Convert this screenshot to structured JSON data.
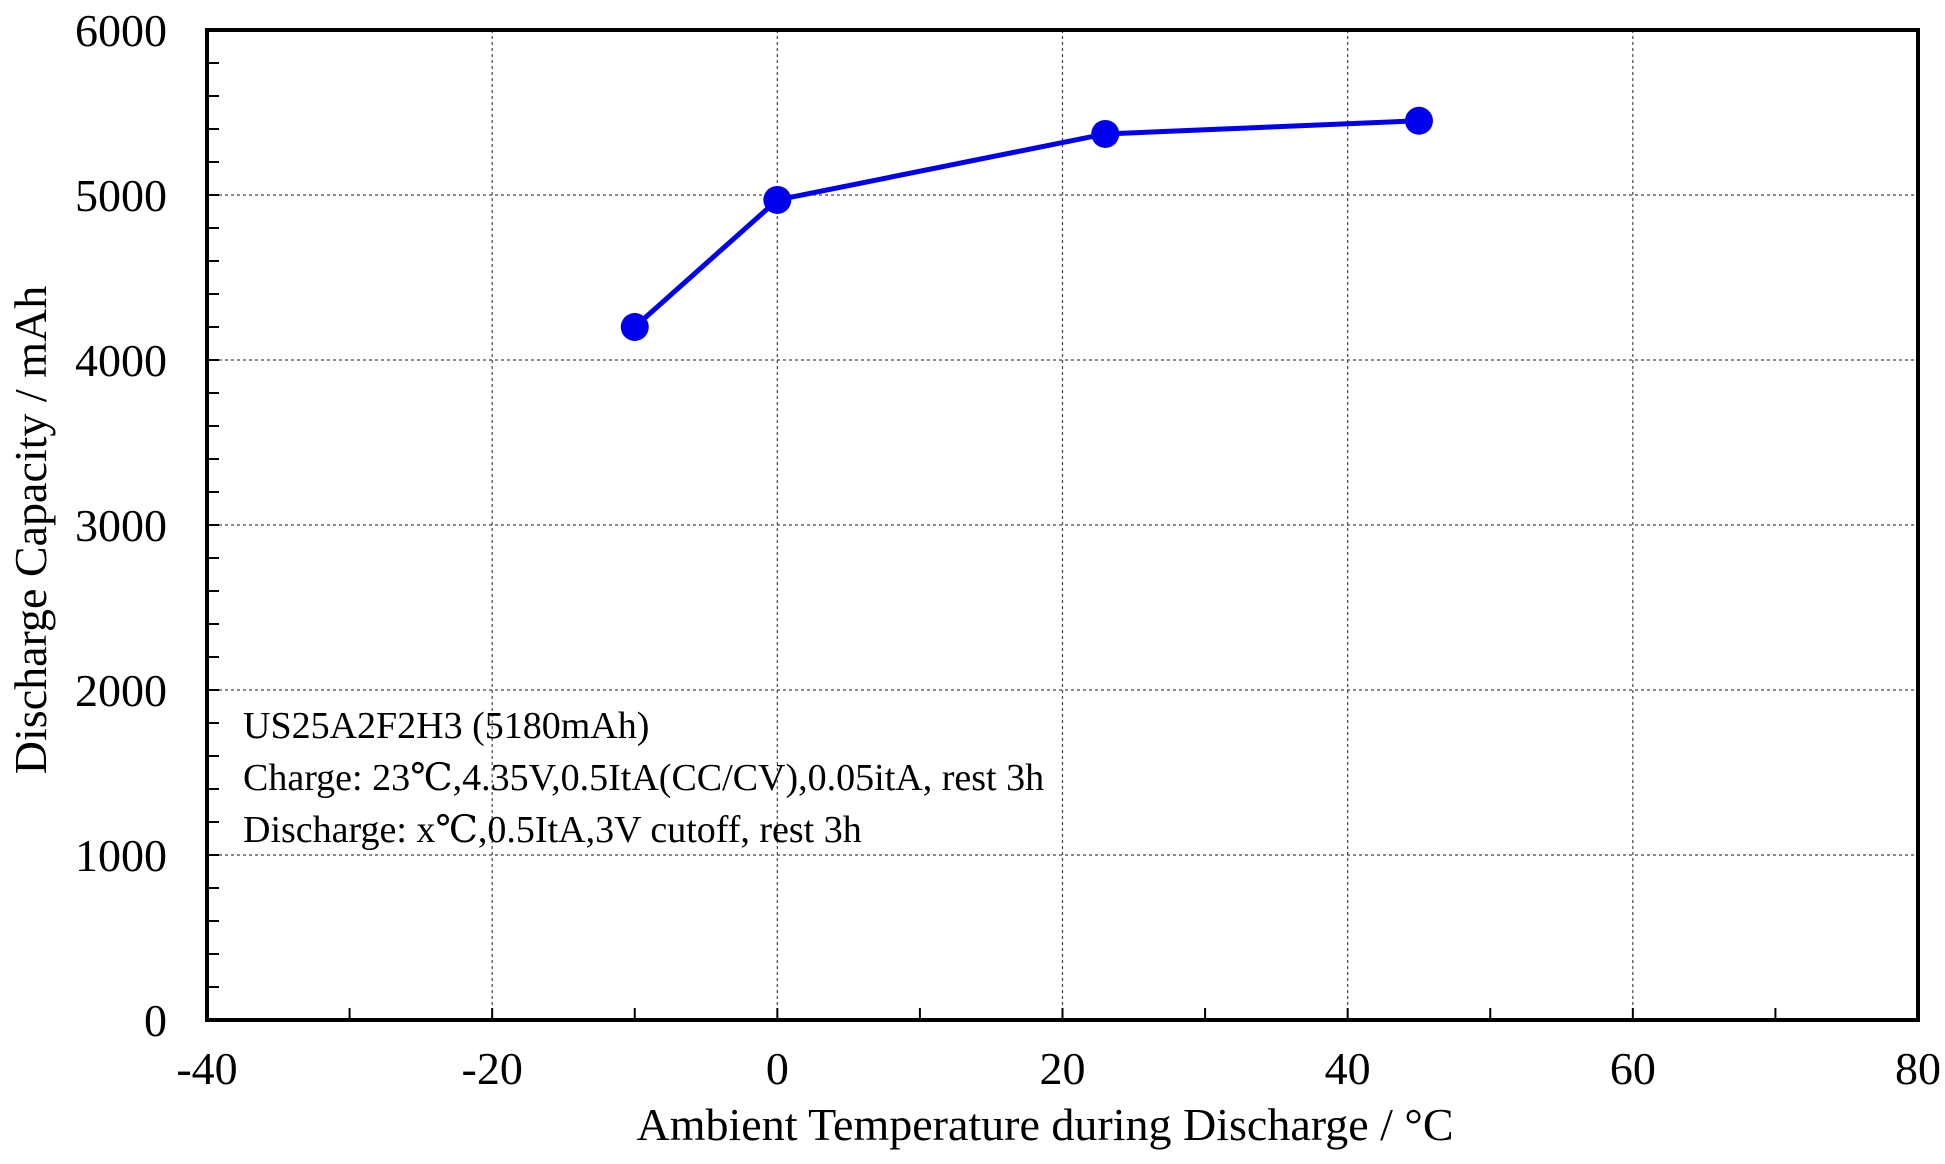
{
  "chart_data": {
    "type": "line",
    "title": "",
    "xlabel": "Ambient Temperature during Discharge / °C",
    "ylabel": "Discharge Capacity / mAh",
    "xlim": [
      -40,
      80
    ],
    "ylim": [
      0,
      6000
    ],
    "x_ticks": [
      -40,
      -20,
      0,
      20,
      40,
      60,
      80
    ],
    "y_ticks": [
      0,
      1000,
      2000,
      3000,
      4000,
      5000,
      6000
    ],
    "x_tick_labels": [
      "-40",
      "-20",
      "0",
      "20",
      "40",
      "60",
      "80"
    ],
    "y_tick_labels": [
      "0",
      "1000",
      "2000",
      "3000",
      "4000",
      "5000",
      "6000"
    ],
    "grid": true,
    "series": [
      {
        "color": "#0000ee",
        "x": [
          -10,
          0,
          23,
          45
        ],
        "y": [
          4200,
          4970,
          5370,
          5450
        ]
      }
    ],
    "annotations": [
      "US25A2F2H3 (5180mAh)",
      "Charge: 23℃,4.35V,0.5ItA(CC/CV),0.05itA,  rest 3h",
      "Discharge:  x℃,0.5ItA,3V cutoff,  rest 3h"
    ]
  }
}
